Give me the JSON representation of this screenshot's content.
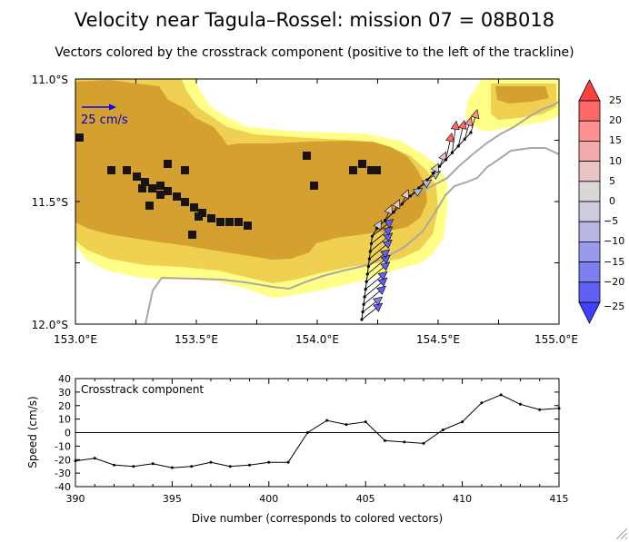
{
  "title": "Velocity near Tagula–Rossel: mission 07 = 08B018",
  "subtitle": "Vectors colored by the crosstrack component (positive to the left of the trackline)",
  "map": {
    "lat_ticks": [
      "11.0°S",
      "11.5°S",
      "12.0°S"
    ],
    "lon_ticks": [
      "153.0°E",
      "153.5°E",
      "154.0°E",
      "154.5°E",
      "155.0°E"
    ],
    "scale_label": "25 cm/s",
    "colorbar_labels": [
      "25",
      "20",
      "15",
      "10",
      "5",
      "0",
      "−5",
      "−10",
      "−15",
      "−20",
      "−25"
    ],
    "colors": {
      "land_dark": "#1a1410",
      "shelf": "#d4a030",
      "mid": "#f0d050",
      "shallow": "#ffff88",
      "coast": "#a8a8a8"
    }
  },
  "chart_data": {
    "type": "line",
    "title": "Crosstrack component",
    "xlabel": "Dive number (corresponds to colored vectors)",
    "ylabel": "Speed (cm/s)",
    "xlim": [
      390,
      415
    ],
    "ylim": [
      -40,
      40
    ],
    "x_ticks": [
      390,
      395,
      400,
      405,
      410,
      415
    ],
    "y_ticks": [
      40,
      30,
      20,
      10,
      0,
      -10,
      -20,
      -30,
      -40
    ],
    "x": [
      390,
      391,
      392,
      393,
      394,
      395,
      396,
      397,
      398,
      399,
      400,
      401,
      402,
      403,
      404,
      405,
      406,
      407,
      408,
      409,
      410,
      411,
      412,
      413,
      414,
      415
    ],
    "values": [
      -21,
      -19,
      -24,
      -25,
      -23,
      -26,
      -25,
      -22,
      -25,
      -24,
      -22,
      -22,
      0,
      9,
      6,
      8,
      -6,
      -7,
      -8,
      2,
      8,
      22,
      28,
      21,
      17,
      18
    ],
    "grid": false
  }
}
